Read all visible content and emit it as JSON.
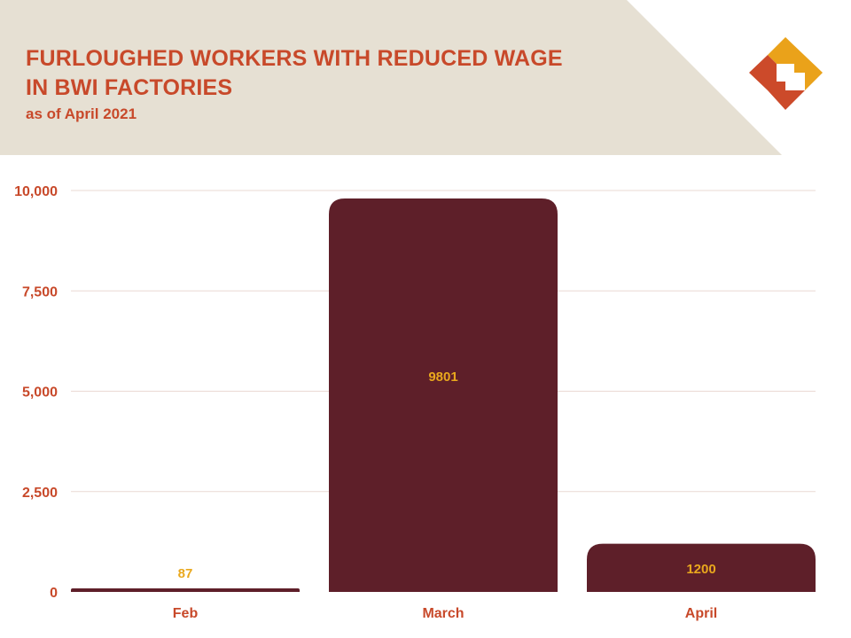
{
  "header": {
    "title_line1": "FURLOUGHED WORKERS WITH REDUCED WAGE",
    "title_line2": "IN BWI FACTORIES",
    "subtitle": "as of April 2021",
    "logo_icon": "bwi-logo-icon"
  },
  "colors": {
    "header_bg": "#e6e0d3",
    "bar": "#5e1f29",
    "accent_text": "#c8492a",
    "data_label": "#e9a81d",
    "grid": "#ead9d3",
    "logo_yellow": "#eaa21a",
    "logo_orange": "#cc4a2a"
  },
  "chart_data": {
    "type": "bar",
    "title": "FURLOUGHED WORKERS WITH REDUCED WAGE IN BWI FACTORIES",
    "subtitle": "as of April 2021",
    "categories": [
      "Feb",
      "March",
      "April"
    ],
    "values": [
      87,
      9801,
      1200
    ],
    "data_labels": [
      "87",
      "9801",
      "1200"
    ],
    "ylim": [
      0,
      10000
    ],
    "yticks": [
      0,
      2500,
      5000,
      7500,
      10000
    ],
    "ytick_labels": [
      "0",
      "2,500",
      "5,000",
      "7,500",
      "10,000"
    ],
    "xlabel": "",
    "ylabel": "",
    "grid": true,
    "legend": false
  }
}
